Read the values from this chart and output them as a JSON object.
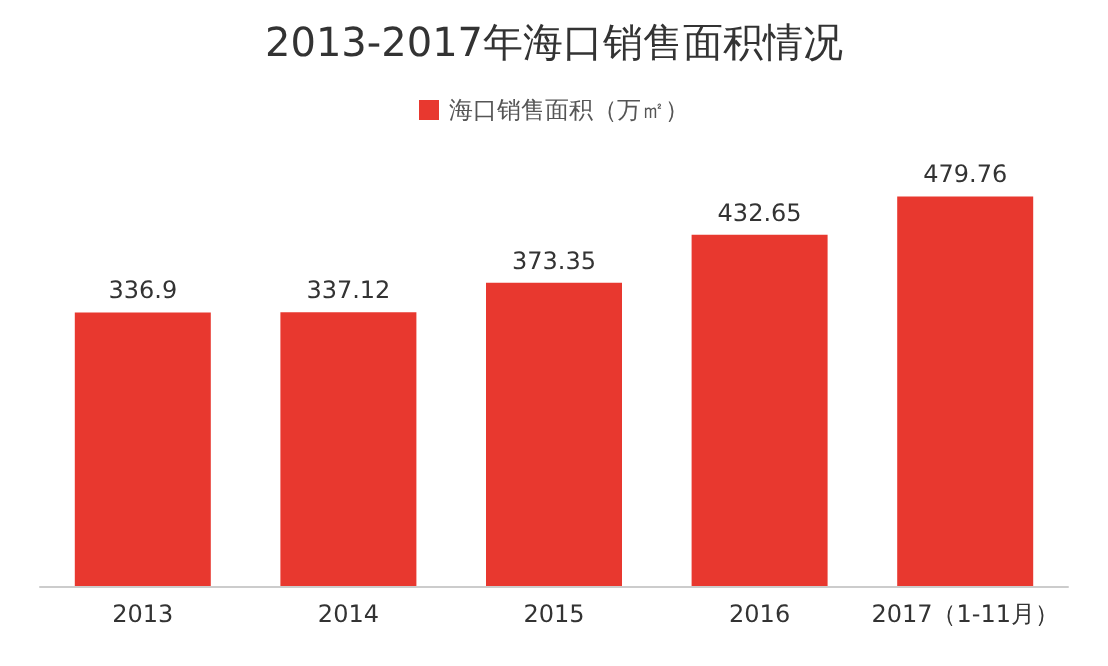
{
  "chart_data": {
    "type": "bar",
    "title": "2013-2017年海口销售面积情况",
    "categories": [
      "2013",
      "2014",
      "2015",
      "2016",
      "2017（1-11月）"
    ],
    "series": [
      {
        "name": "海口销售面积（万㎡）",
        "color": "#e8382f",
        "values": [
          336.9,
          337.12,
          373.35,
          432.65,
          479.76
        ]
      }
    ],
    "data_labels": true,
    "legend": "top",
    "grid": false
  }
}
